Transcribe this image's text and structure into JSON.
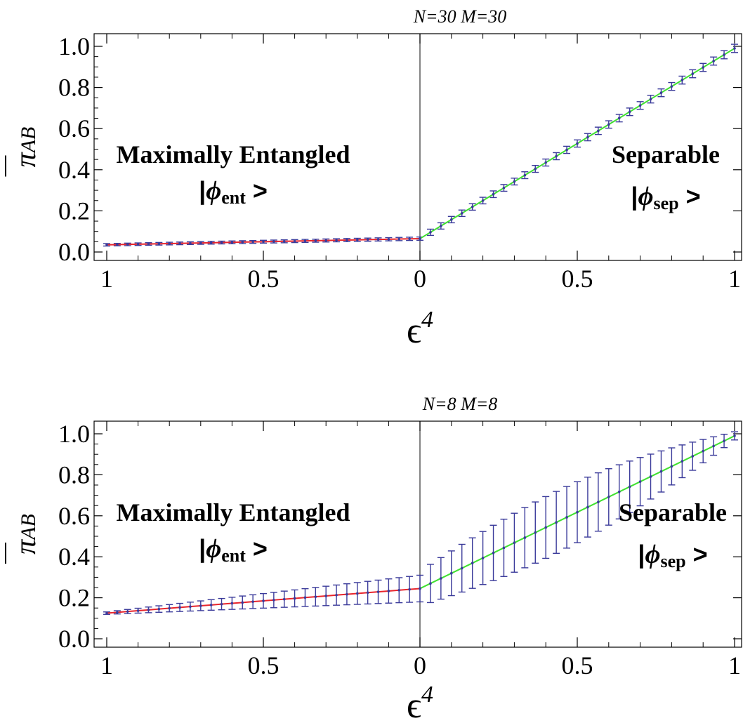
{
  "chart_data": [
    {
      "type": "line",
      "title": "N=30  M=30",
      "xlabel_base": "ϵ",
      "xlabel_exp": "4",
      "ylabel_base": "π",
      "ylabel_sub": "AB",
      "ylim": [
        0,
        1
      ],
      "yticks": [
        "0.0",
        "0.2",
        "0.4",
        "0.6",
        "0.8",
        "1.0"
      ],
      "xticks": [
        "1",
        "0.5",
        "0",
        "0.5",
        "1"
      ],
      "grid": false,
      "annotation_left": {
        "title": "Maximally Entangled",
        "ket_symbol": "ϕ",
        "ket_sub": "ent"
      },
      "annotation_right": {
        "title": "Separable",
        "ket_symbol": "ϕ",
        "ket_sub": "sep"
      },
      "series": [
        {
          "segment": "entangled",
          "color": "#e8252c",
          "x_from": 1,
          "x_to": 0,
          "y_start": 0.035,
          "y_end": 0.065,
          "err_start": 0.006,
          "err_end": 0.008
        },
        {
          "segment": "separable",
          "color": "#40e030",
          "x_from": 0,
          "x_to": 1,
          "y_start": 0.065,
          "y_end": 0.99,
          "err_start": 0.015,
          "err_end": 0.02
        }
      ]
    },
    {
      "type": "line",
      "title": "N=8  M=8",
      "xlabel_base": "ϵ",
      "xlabel_exp": "4",
      "ylabel_base": "π",
      "ylabel_sub": "AB",
      "ylim": [
        0,
        1
      ],
      "yticks": [
        "0.0",
        "0.2",
        "0.4",
        "0.6",
        "0.8",
        "1.0"
      ],
      "xticks": [
        "1",
        "0.5",
        "0",
        "0.5",
        "1"
      ],
      "grid": false,
      "annotation_left": {
        "title": "Maximally Entangled",
        "ket_symbol": "ϕ",
        "ket_sub": "ent"
      },
      "annotation_right": {
        "title": "Separable",
        "ket_symbol": "ϕ",
        "ket_sub": "sep"
      },
      "series": [
        {
          "segment": "entangled",
          "color": "#e8252c",
          "x_from": 1,
          "x_to": 0,
          "y_start": 0.125,
          "y_end": 0.245,
          "err_start": 0.006,
          "err_end": 0.065
        },
        {
          "segment": "separable",
          "color": "#40e030",
          "x_from": 0,
          "x_to": 1,
          "y_start": 0.245,
          "y_end": 0.99,
          "err_start": 0.085,
          "err_end": 0.02
        }
      ]
    }
  ],
  "colors": {
    "errorbar": "#3a3a9a",
    "marker": "#3a3a9a",
    "axis": "#000000"
  }
}
